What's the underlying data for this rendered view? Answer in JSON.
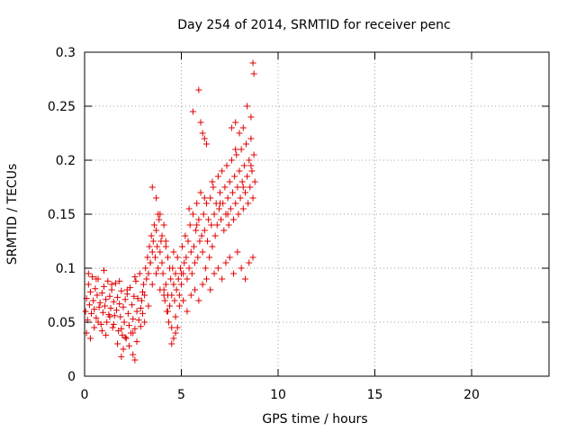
{
  "chart_data": {
    "type": "scatter",
    "title": "Day 254 of 2014, SRMTID for receiver penc",
    "xlabel": "GPS time / hours",
    "ylabel": "SRMTID / TECUs",
    "xlim": [
      0,
      24
    ],
    "ylim": [
      0,
      0.3
    ],
    "xticks": [
      0,
      5,
      10,
      15,
      20
    ],
    "xtick_labels": [
      "0",
      "5",
      "10",
      "15",
      "20"
    ],
    "yticks": [
      0,
      0.05,
      0.1,
      0.15,
      0.2,
      0.25,
      0.3
    ],
    "ytick_labels": [
      "0",
      "0.05",
      "0.1",
      "0.15",
      "0.2",
      "0.25",
      "0.3"
    ],
    "grid": true,
    "marker": "+",
    "color": "#e00000",
    "series": [
      {
        "name": "SRMTID",
        "x": [
          0.05,
          0.1,
          0.15,
          0.2,
          0.25,
          0.3,
          0.35,
          0.4,
          0.45,
          0.5,
          0.55,
          0.6,
          0.65,
          0.7,
          0.75,
          0.8,
          0.85,
          0.9,
          0.95,
          1.0,
          1.05,
          1.1,
          1.15,
          1.2,
          1.25,
          1.3,
          1.35,
          1.4,
          1.45,
          1.5,
          1.55,
          1.6,
          1.65,
          1.7,
          1.75,
          1.8,
          1.85,
          1.9,
          1.95,
          2.0,
          2.05,
          2.1,
          2.15,
          2.2,
          2.25,
          2.3,
          2.35,
          2.4,
          2.45,
          2.5,
          2.55,
          2.6,
          2.65,
          2.7,
          2.75,
          2.8,
          2.85,
          2.9,
          2.95,
          3.0,
          3.05,
          3.1,
          3.15,
          3.2,
          3.25,
          3.3,
          3.35,
          3.4,
          3.45,
          3.5,
          3.55,
          3.6,
          3.65,
          3.7,
          3.75,
          3.8,
          3.85,
          3.9,
          3.95,
          4.0,
          4.05,
          4.1,
          4.15,
          4.2,
          4.25,
          4.3,
          4.35,
          4.4,
          4.45,
          4.5,
          4.55,
          4.6,
          4.65,
          4.7,
          4.75,
          4.8,
          4.85,
          4.9,
          4.95,
          5.0,
          5.05,
          5.1,
          5.15,
          5.2,
          5.25,
          5.3,
          5.35,
          5.4,
          5.45,
          5.5,
          5.55,
          5.6,
          5.65,
          5.7,
          5.75,
          5.8,
          5.85,
          5.9,
          5.95,
          6.0,
          6.05,
          6.1,
          6.15,
          6.2,
          6.25,
          6.3,
          6.35,
          6.4,
          6.45,
          6.5,
          6.55,
          6.6,
          6.65,
          6.7,
          6.75,
          6.8,
          6.85,
          6.9,
          6.95,
          7.0,
          7.05,
          7.1,
          7.15,
          7.2,
          7.25,
          7.3,
          7.35,
          7.4,
          7.45,
          7.5,
          7.55,
          7.6,
          7.65,
          7.7,
          7.75,
          7.8,
          7.85,
          7.9,
          7.95,
          8.0,
          8.05,
          8.1,
          8.15,
          8.2,
          8.25,
          8.3,
          8.35,
          8.4,
          8.45,
          8.5,
          8.55,
          8.6,
          8.65,
          8.7,
          8.75,
          8.8,
          0.1,
          0.3,
          0.5,
          0.7,
          0.9,
          1.1,
          1.3,
          1.5,
          1.7,
          1.9,
          2.1,
          2.3,
          2.5,
          2.7,
          2.9,
          3.1,
          3.3,
          3.5,
          3.7,
          3.9,
          4.1,
          4.3,
          4.5,
          4.7,
          4.9,
          5.1,
          5.3,
          5.5,
          5.7,
          5.9,
          6.1,
          6.3,
          6.5,
          6.7,
          6.9,
          7.1,
          7.3,
          7.5,
          7.7,
          7.9,
          8.1,
          8.3,
          8.5,
          8.7,
          0.2,
          0.6,
          1.0,
          1.4,
          1.8,
          2.2,
          2.6,
          3.0,
          3.4,
          3.8,
          4.2,
          4.6,
          5.0,
          5.4,
          5.8,
          6.2,
          6.6,
          7.0,
          7.4,
          7.8,
          8.2,
          8.6,
          3.5,
          3.7,
          3.9,
          4.0,
          4.1,
          4.2,
          4.3,
          4.4,
          5.6,
          5.9,
          6.0,
          6.1,
          6.2,
          6.3,
          7.6,
          7.8,
          8.0,
          8.2,
          8.4,
          8.6,
          8.7,
          8.75,
          2.5,
          2.6,
          1.9,
          2.0,
          4.5,
          4.6,
          4.7,
          4.8
        ],
        "y": [
          0.06,
          0.072,
          0.052,
          0.085,
          0.066,
          0.078,
          0.058,
          0.092,
          0.07,
          0.062,
          0.081,
          0.054,
          0.075,
          0.09,
          0.064,
          0.068,
          0.048,
          0.077,
          0.059,
          0.083,
          0.065,
          0.071,
          0.05,
          0.088,
          0.057,
          0.074,
          0.063,
          0.08,
          0.045,
          0.069,
          0.056,
          0.086,
          0.061,
          0.073,
          0.042,
          0.067,
          0.055,
          0.079,
          0.038,
          0.064,
          0.05,
          0.071,
          0.035,
          0.076,
          0.058,
          0.047,
          0.082,
          0.04,
          0.066,
          0.053,
          0.074,
          0.044,
          0.088,
          0.06,
          0.072,
          0.052,
          0.095,
          0.063,
          0.07,
          0.058,
          0.085,
          0.075,
          0.1,
          0.09,
          0.11,
          0.095,
          0.12,
          0.105,
          0.13,
          0.115,
          0.125,
          0.14,
          0.11,
          0.135,
          0.12,
          0.1,
          0.145,
          0.115,
          0.125,
          0.105,
          0.095,
          0.08,
          0.07,
          0.085,
          0.06,
          0.075,
          0.05,
          0.065,
          0.09,
          0.075,
          0.1,
          0.085,
          0.07,
          0.095,
          0.08,
          0.11,
          0.09,
          0.075,
          0.1,
          0.085,
          0.12,
          0.095,
          0.105,
          0.13,
          0.11,
          0.09,
          0.125,
          0.1,
          0.14,
          0.115,
          0.095,
          0.15,
          0.12,
          0.105,
          0.135,
          0.16,
          0.11,
          0.145,
          0.125,
          0.17,
          0.13,
          0.115,
          0.15,
          0.135,
          0.1,
          0.16,
          0.125,
          0.145,
          0.11,
          0.165,
          0.14,
          0.12,
          0.175,
          0.15,
          0.13,
          0.16,
          0.14,
          0.185,
          0.155,
          0.17,
          0.145,
          0.19,
          0.16,
          0.135,
          0.175,
          0.15,
          0.195,
          0.165,
          0.14,
          0.18,
          0.155,
          0.2,
          0.17,
          0.145,
          0.185,
          0.16,
          0.205,
          0.175,
          0.15,
          0.19,
          0.165,
          0.21,
          0.18,
          0.155,
          0.195,
          0.17,
          0.215,
          0.185,
          0.16,
          0.2,
          0.175,
          0.22,
          0.19,
          0.165,
          0.205,
          0.18,
          0.04,
          0.035,
          0.045,
          0.05,
          0.042,
          0.038,
          0.055,
          0.048,
          0.03,
          0.044,
          0.036,
          0.028,
          0.04,
          0.032,
          0.046,
          0.05,
          0.065,
          0.085,
          0.095,
          0.08,
          0.075,
          0.06,
          0.045,
          0.055,
          0.065,
          0.07,
          0.06,
          0.075,
          0.08,
          0.07,
          0.085,
          0.09,
          0.08,
          0.095,
          0.1,
          0.09,
          0.105,
          0.11,
          0.095,
          0.115,
          0.1,
          0.09,
          0.105,
          0.11,
          0.095,
          0.09,
          0.098,
          0.085,
          0.088,
          0.08,
          0.092,
          0.078,
          0.105,
          0.15,
          0.125,
          0.115,
          0.095,
          0.155,
          0.14,
          0.165,
          0.18,
          0.16,
          0.15,
          0.21,
          0.175,
          0.195,
          0.175,
          0.165,
          0.15,
          0.13,
          0.14,
          0.12,
          0.11,
          0.1,
          0.245,
          0.265,
          0.235,
          0.225,
          0.22,
          0.215,
          0.23,
          0.235,
          0.225,
          0.23,
          0.25,
          0.24,
          0.29,
          0.28,
          0.02,
          0.015,
          0.018,
          0.025,
          0.03,
          0.035,
          0.04,
          0.045
        ]
      }
    ]
  }
}
